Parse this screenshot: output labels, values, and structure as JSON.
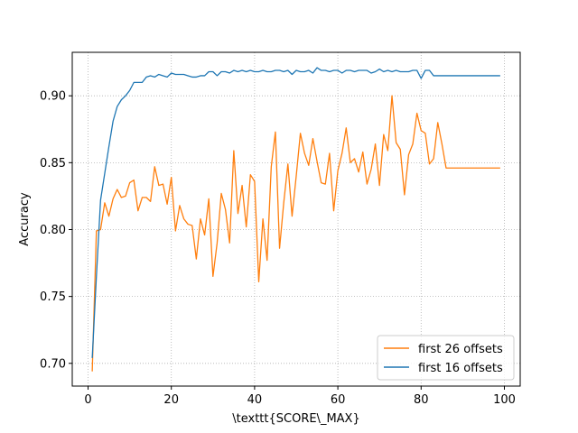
{
  "chart_data": {
    "type": "line",
    "xlabel": "\\texttt{SCORE\\_MAX}",
    "ylabel": "Accuracy",
    "xlim": [
      -3.8,
      103.8
    ],
    "ylim": [
      0.683,
      0.9325
    ],
    "xticks": [
      0,
      20,
      40,
      60,
      80,
      100
    ],
    "yticks": [
      0.7,
      0.75,
      0.8,
      0.85,
      0.9
    ],
    "xtick_labels": [
      "0",
      "20",
      "40",
      "60",
      "80",
      "100"
    ],
    "ytick_labels": [
      "0.70",
      "0.75",
      "0.80",
      "0.85",
      "0.90"
    ],
    "grid": true,
    "legend_position": "lower-right",
    "series": [
      {
        "name": "first 26 offsets",
        "color": "#ff7f0e",
        "x": [
          1,
          2,
          3,
          4,
          5,
          6,
          7,
          8,
          9,
          10,
          11,
          12,
          13,
          14,
          15,
          16,
          17,
          18,
          19,
          20,
          21,
          22,
          23,
          24,
          25,
          26,
          27,
          28,
          29,
          30,
          31,
          32,
          33,
          34,
          35,
          36,
          37,
          38,
          39,
          40,
          41,
          42,
          43,
          44,
          45,
          46,
          47,
          48,
          49,
          50,
          51,
          52,
          53,
          54,
          55,
          56,
          57,
          58,
          59,
          60,
          61,
          62,
          63,
          64,
          65,
          66,
          67,
          68,
          69,
          70,
          71,
          72,
          73,
          74,
          75,
          76,
          77,
          78,
          79,
          80,
          81,
          82,
          83,
          84,
          85,
          86,
          87,
          88,
          89,
          90,
          91,
          92,
          93,
          94,
          95,
          96,
          97,
          98,
          99
        ],
        "y": [
          0.694,
          0.799,
          0.8,
          0.82,
          0.81,
          0.823,
          0.83,
          0.824,
          0.825,
          0.835,
          0.837,
          0.814,
          0.824,
          0.824,
          0.821,
          0.847,
          0.833,
          0.834,
          0.819,
          0.839,
          0.799,
          0.818,
          0.808,
          0.804,
          0.803,
          0.778,
          0.808,
          0.796,
          0.823,
          0.765,
          0.79,
          0.827,
          0.815,
          0.79,
          0.859,
          0.812,
          0.833,
          0.802,
          0.841,
          0.836,
          0.761,
          0.808,
          0.777,
          0.847,
          0.873,
          0.786,
          0.82,
          0.849,
          0.81,
          0.84,
          0.872,
          0.857,
          0.848,
          0.868,
          0.851,
          0.835,
          0.834,
          0.857,
          0.814,
          0.844,
          0.857,
          0.876,
          0.85,
          0.853,
          0.843,
          0.858,
          0.834,
          0.845,
          0.864,
          0.833,
          0.871,
          0.859,
          0.9,
          0.865,
          0.86,
          0.826,
          0.856,
          0.864,
          0.887,
          0.874,
          0.872,
          0.849,
          0.853,
          0.88,
          0.864,
          0.846,
          0.846,
          0.846,
          0.846,
          0.846,
          0.846,
          0.846,
          0.846,
          0.846,
          0.846,
          0.846,
          0.846,
          0.846,
          0.846
        ]
      },
      {
        "name": "first 16 offsets",
        "color": "#1f77b4",
        "x": [
          1,
          2,
          3,
          4,
          5,
          6,
          7,
          8,
          9,
          10,
          11,
          12,
          13,
          14,
          15,
          16,
          17,
          18,
          19,
          20,
          21,
          22,
          23,
          24,
          25,
          26,
          27,
          28,
          29,
          30,
          31,
          32,
          33,
          34,
          35,
          36,
          37,
          38,
          39,
          40,
          41,
          42,
          43,
          44,
          45,
          46,
          47,
          48,
          49,
          50,
          51,
          52,
          53,
          54,
          55,
          56,
          57,
          58,
          59,
          60,
          61,
          62,
          63,
          64,
          65,
          66,
          67,
          68,
          69,
          70,
          71,
          72,
          73,
          74,
          75,
          76,
          77,
          78,
          79,
          80,
          81,
          82,
          83,
          84,
          85,
          86,
          87,
          88,
          89,
          90,
          91,
          92,
          93,
          94,
          95,
          96,
          97,
          98,
          99
        ],
        "y": [
          0.704,
          0.765,
          0.822,
          0.842,
          0.862,
          0.881,
          0.892,
          0.897,
          0.9,
          0.904,
          0.91,
          0.91,
          0.91,
          0.914,
          0.915,
          0.914,
          0.916,
          0.915,
          0.914,
          0.917,
          0.916,
          0.916,
          0.916,
          0.915,
          0.914,
          0.914,
          0.915,
          0.915,
          0.918,
          0.918,
          0.915,
          0.918,
          0.918,
          0.917,
          0.919,
          0.918,
          0.919,
          0.918,
          0.919,
          0.918,
          0.918,
          0.919,
          0.918,
          0.918,
          0.919,
          0.919,
          0.918,
          0.919,
          0.916,
          0.919,
          0.918,
          0.918,
          0.919,
          0.917,
          0.921,
          0.919,
          0.919,
          0.918,
          0.919,
          0.919,
          0.917,
          0.919,
          0.919,
          0.918,
          0.919,
          0.919,
          0.919,
          0.917,
          0.918,
          0.92,
          0.918,
          0.919,
          0.918,
          0.919,
          0.918,
          0.918,
          0.918,
          0.919,
          0.919,
          0.913,
          0.919,
          0.919,
          0.915,
          0.915,
          0.915,
          0.915,
          0.915,
          0.915,
          0.915,
          0.915,
          0.915,
          0.915,
          0.915,
          0.915,
          0.915,
          0.915,
          0.915,
          0.915,
          0.915
        ]
      }
    ]
  }
}
